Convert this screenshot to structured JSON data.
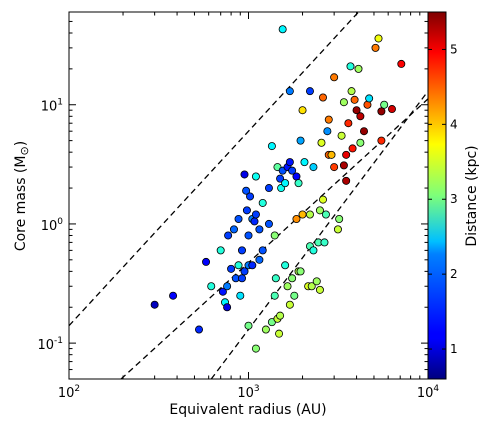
{
  "chart_data": {
    "type": "scatter",
    "xlabel": "Equivalent radius (AU)",
    "ylabel": "Core mass (M",
    "ylabel_suffix": ")",
    "ylabel_symbol": "⊙",
    "xscale": "log",
    "yscale": "log",
    "xlim": [
      100,
      10000
    ],
    "ylim": [
      0.05,
      60
    ],
    "x_major_ticks": [
      {
        "value": 100,
        "base": "10",
        "exp": "2"
      },
      {
        "value": 1000,
        "base": "10",
        "exp": "3"
      },
      {
        "value": 10000,
        "base": "10",
        "exp": "4"
      }
    ],
    "y_major_ticks": [
      {
        "value": 0.1,
        "base": "10",
        "exp": "-1"
      },
      {
        "value": 1,
        "base": "10",
        "exp": "0"
      },
      {
        "value": 10,
        "base": "10",
        "exp": "1"
      }
    ],
    "colorbar": {
      "label": "Distance (kpc)",
      "range": [
        0.6,
        5.5
      ],
      "ticks": [
        "1",
        "2",
        "3",
        "4",
        "5"
      ],
      "tick_values": [
        1,
        2,
        3,
        4,
        5
      ],
      "colormap": "jet"
    },
    "reference_lines": [
      {
        "style": "dashed",
        "points": [
          [
            100,
            0.14
          ],
          [
            4100,
            60
          ]
        ]
      },
      {
        "style": "dashed",
        "points": [
          [
            195,
            0.05
          ],
          [
            10000,
            11.2
          ]
        ]
      },
      {
        "style": "dashed",
        "points": [
          [
            620,
            0.05
          ],
          [
            10000,
            13
          ]
        ]
      }
    ],
    "points": [
      {
        "x": 300,
        "y": 0.21,
        "c": 0.9
      },
      {
        "x": 380,
        "y": 0.25,
        "c": 1.2
      },
      {
        "x": 530,
        "y": 0.13,
        "c": 1.4
      },
      {
        "x": 580,
        "y": 0.48,
        "c": 1.2
      },
      {
        "x": 620,
        "y": 0.3,
        "c": 2.6
      },
      {
        "x": 700,
        "y": 0.6,
        "c": 2.6
      },
      {
        "x": 720,
        "y": 0.27,
        "c": 1.3
      },
      {
        "x": 740,
        "y": 0.22,
        "c": 2.4
      },
      {
        "x": 760,
        "y": 0.2,
        "c": 1.1
      },
      {
        "x": 760,
        "y": 0.3,
        "c": 1.8
      },
      {
        "x": 770,
        "y": 0.8,
        "c": 1.5
      },
      {
        "x": 800,
        "y": 0.42,
        "c": 1.5
      },
      {
        "x": 830,
        "y": 0.9,
        "c": 1.7
      },
      {
        "x": 850,
        "y": 0.35,
        "c": 1.6
      },
      {
        "x": 880,
        "y": 0.45,
        "c": 2.6
      },
      {
        "x": 880,
        "y": 1.1,
        "c": 1.6
      },
      {
        "x": 900,
        "y": 0.25,
        "c": 2.3
      },
      {
        "x": 920,
        "y": 0.35,
        "c": 1.5
      },
      {
        "x": 920,
        "y": 0.6,
        "c": 1.5
      },
      {
        "x": 950,
        "y": 0.4,
        "c": 1.5
      },
      {
        "x": 950,
        "y": 2.6,
        "c": 1.1
      },
      {
        "x": 980,
        "y": 1.3,
        "c": 1.5
      },
      {
        "x": 970,
        "y": 1.9,
        "c": 1.6
      },
      {
        "x": 1000,
        "y": 0.45,
        "c": 1.8
      },
      {
        "x": 1000,
        "y": 0.8,
        "c": 1.6
      },
      {
        "x": 1000,
        "y": 0.14,
        "c": 3.0
      },
      {
        "x": 1020,
        "y": 1.7,
        "c": 1.5
      },
      {
        "x": 1050,
        "y": 1.1,
        "c": 1.8
      },
      {
        "x": 1050,
        "y": 0.45,
        "c": 1.4
      },
      {
        "x": 1080,
        "y": 1.05,
        "c": 1.4
      },
      {
        "x": 1100,
        "y": 0.09,
        "c": 3.1
      },
      {
        "x": 1100,
        "y": 1.2,
        "c": 1.5
      },
      {
        "x": 1100,
        "y": 2.5,
        "c": 2.5
      },
      {
        "x": 1150,
        "y": 0.5,
        "c": 1.7
      },
      {
        "x": 1150,
        "y": 0.9,
        "c": 1.6
      },
      {
        "x": 1200,
        "y": 1.5,
        "c": 2.6
      },
      {
        "x": 1200,
        "y": 0.6,
        "c": 1.6
      },
      {
        "x": 1250,
        "y": 0.13,
        "c": 3.2
      },
      {
        "x": 1300,
        "y": 1.0,
        "c": 1.6
      },
      {
        "x": 1300,
        "y": 2.0,
        "c": 1.5
      },
      {
        "x": 1350,
        "y": 4.5,
        "c": 2.4
      },
      {
        "x": 1350,
        "y": 0.15,
        "c": 3.0
      },
      {
        "x": 1400,
        "y": 0.8,
        "c": 3.1
      },
      {
        "x": 1400,
        "y": 0.25,
        "c": 2.8
      },
      {
        "x": 1420,
        "y": 0.35,
        "c": 2.7
      },
      {
        "x": 1450,
        "y": 3.0,
        "c": 2.9
      },
      {
        "x": 1450,
        "y": 0.16,
        "c": 3.4
      },
      {
        "x": 1480,
        "y": 0.12,
        "c": 3.4
      },
      {
        "x": 1500,
        "y": 0.17,
        "c": 3.3
      },
      {
        "x": 1500,
        "y": 2.4,
        "c": 1.5
      },
      {
        "x": 1520,
        "y": 2.0,
        "c": 2.5
      },
      {
        "x": 1550,
        "y": 2.8,
        "c": 1.6
      },
      {
        "x": 1550,
        "y": 43.0,
        "c": 2.4
      },
      {
        "x": 1600,
        "y": 0.45,
        "c": 2.6
      },
      {
        "x": 1600,
        "y": 2.2,
        "c": 2.4
      },
      {
        "x": 1650,
        "y": 3.0,
        "c": 1.3
      },
      {
        "x": 1650,
        "y": 0.3,
        "c": 3.2
      },
      {
        "x": 1700,
        "y": 0.21,
        "c": 3.4
      },
      {
        "x": 1700,
        "y": 3.3,
        "c": 1.3
      },
      {
        "x": 1700,
        "y": 13.0,
        "c": 1.8
      },
      {
        "x": 1750,
        "y": 2.8,
        "c": 1.5
      },
      {
        "x": 1750,
        "y": 0.35,
        "c": 3.1
      },
      {
        "x": 1800,
        "y": 0.25,
        "c": 3.0
      },
      {
        "x": 1850,
        "y": 1.1,
        "c": 4.2
      },
      {
        "x": 1850,
        "y": 2.5,
        "c": 1.2
      },
      {
        "x": 1900,
        "y": 0.4,
        "c": 3.3
      },
      {
        "x": 1900,
        "y": 2.2,
        "c": 2.7
      },
      {
        "x": 1950,
        "y": 0.4,
        "c": 3.1
      },
      {
        "x": 1950,
        "y": 5.0,
        "c": 2.0
      },
      {
        "x": 2000,
        "y": 9.0,
        "c": 3.8
      },
      {
        "x": 2000,
        "y": 1.2,
        "c": 4.0
      },
      {
        "x": 2050,
        "y": 3.3,
        "c": 2.4
      },
      {
        "x": 2150,
        "y": 0.3,
        "c": 3.5
      },
      {
        "x": 2200,
        "y": 1.2,
        "c": 3.3
      },
      {
        "x": 2200,
        "y": 0.65,
        "c": 2.8
      },
      {
        "x": 2200,
        "y": 13.0,
        "c": 1.5
      },
      {
        "x": 2250,
        "y": 0.3,
        "c": 3.3
      },
      {
        "x": 2300,
        "y": 3.0,
        "c": 2.2
      },
      {
        "x": 2300,
        "y": 0.6,
        "c": 2.6
      },
      {
        "x": 2400,
        "y": 0.33,
        "c": 3.2
      },
      {
        "x": 2450,
        "y": 0.7,
        "c": 2.8
      },
      {
        "x": 2500,
        "y": 1.3,
        "c": 3.2
      },
      {
        "x": 2500,
        "y": 0.28,
        "c": 3.4
      },
      {
        "x": 2550,
        "y": 4.8,
        "c": 3.5
      },
      {
        "x": 2600,
        "y": 1.6,
        "c": 3.5
      },
      {
        "x": 2600,
        "y": 11.5,
        "c": 4.4
      },
      {
        "x": 2650,
        "y": 0.7,
        "c": 2.7
      },
      {
        "x": 2700,
        "y": 1.2,
        "c": 2.8
      },
      {
        "x": 2750,
        "y": 6.0,
        "c": 1.9
      },
      {
        "x": 2800,
        "y": 3.8,
        "c": 4.4
      },
      {
        "x": 2800,
        "y": 7.5,
        "c": 4.3
      },
      {
        "x": 2900,
        "y": 3.8,
        "c": 4.0
      },
      {
        "x": 3000,
        "y": 17.0,
        "c": 4.3
      },
      {
        "x": 3000,
        "y": 3.0,
        "c": 4.6
      },
      {
        "x": 3150,
        "y": 0.9,
        "c": 3.4
      },
      {
        "x": 3200,
        "y": 1.1,
        "c": 3.1
      },
      {
        "x": 3300,
        "y": 5.5,
        "c": 3.4
      },
      {
        "x": 3400,
        "y": 10.5,
        "c": 3.2
      },
      {
        "x": 3400,
        "y": 3.1,
        "c": 5.3
      },
      {
        "x": 3500,
        "y": 2.3,
        "c": 5.3
      },
      {
        "x": 3500,
        "y": 3.8,
        "c": 5.0
      },
      {
        "x": 3600,
        "y": 7.0,
        "c": 4.7
      },
      {
        "x": 3700,
        "y": 21.0,
        "c": 2.6
      },
      {
        "x": 3750,
        "y": 13.0,
        "c": 3.3
      },
      {
        "x": 3800,
        "y": 4.3,
        "c": 4.8
      },
      {
        "x": 3900,
        "y": 11.0,
        "c": 4.4
      },
      {
        "x": 4000,
        "y": 9.0,
        "c": 5.4
      },
      {
        "x": 4100,
        "y": 20.0,
        "c": 3.2
      },
      {
        "x": 4200,
        "y": 4.8,
        "c": 3.1
      },
      {
        "x": 4200,
        "y": 8.0,
        "c": 5.2
      },
      {
        "x": 4400,
        "y": 6.0,
        "c": 5.4
      },
      {
        "x": 4600,
        "y": 10.0,
        "c": 4.5
      },
      {
        "x": 4700,
        "y": 11.3,
        "c": 2.3
      },
      {
        "x": 5100,
        "y": 30.0,
        "c": 4.3
      },
      {
        "x": 5300,
        "y": 36.0,
        "c": 3.6
      },
      {
        "x": 5500,
        "y": 5.0,
        "c": 4.7
      },
      {
        "x": 5500,
        "y": 8.8,
        "c": 5.4
      },
      {
        "x": 5700,
        "y": 10.0,
        "c": 3.0
      },
      {
        "x": 6300,
        "y": 9.2,
        "c": 5.1
      },
      {
        "x": 7100,
        "y": 22.0,
        "c": 4.9
      }
    ]
  }
}
